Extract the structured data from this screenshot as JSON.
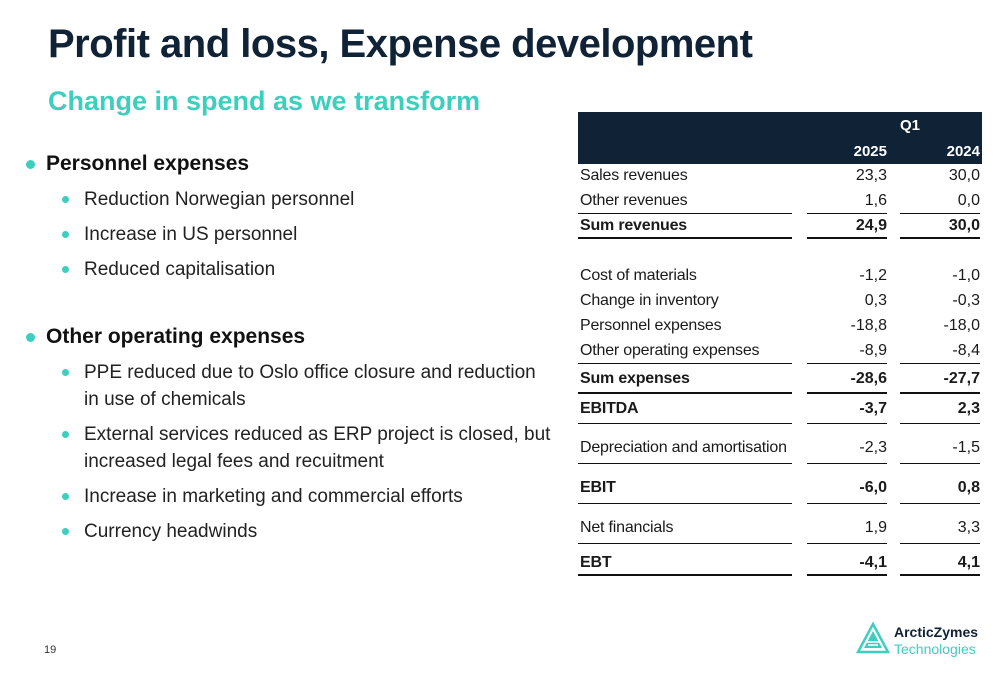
{
  "title": "Profit and loss, Expense development",
  "subtitle": "Change in spend as we transform",
  "bullets": [
    {
      "label": "Personnel expenses",
      "items": [
        "Reduction Norwegian personnel",
        "Increase in US personnel",
        "Reduced capitalisation"
      ]
    },
    {
      "label": "Other operating expenses",
      "items": [
        "PPE reduced due to Oslo office closure and reduction in use of chemicals",
        "External services reduced as ERP project is closed, but increased legal fees and recuitment",
        "Increase in marketing and commercial efforts",
        "Currency headwinds"
      ]
    }
  ],
  "table": {
    "period": "Q1",
    "col1": "2025",
    "col2": "2024",
    "rows": [
      {
        "label": "Sales revenues",
        "v1": "23,3",
        "v2": "30,0"
      },
      {
        "label": "Other revenues",
        "v1": "1,6",
        "v2": "0,0"
      },
      {
        "label": "Sum revenues",
        "v1": "24,9",
        "v2": "30,0"
      },
      {
        "label": "Cost of materials",
        "v1": "-1,2",
        "v2": "-1,0"
      },
      {
        "label": "Change in inventory",
        "v1": "0,3",
        "v2": "-0,3"
      },
      {
        "label": "Personnel expenses",
        "v1": "-18,8",
        "v2": "-18,0"
      },
      {
        "label": "Other operating expenses",
        "v1": "-8,9",
        "v2": "-8,4"
      },
      {
        "label": "Sum expenses",
        "v1": "-28,6",
        "v2": "-27,7"
      },
      {
        "label": "EBITDA",
        "v1": "-3,7",
        "v2": "2,3"
      },
      {
        "label": "Depreciation and amortisation",
        "v1": "-2,3",
        "v2": "-1,5"
      },
      {
        "label": "EBIT",
        "v1": "-6,0",
        "v2": "0,8"
      },
      {
        "label": "Net financials",
        "v1": "1,9",
        "v2": "3,3"
      },
      {
        "label": "EBT",
        "v1": "-4,1",
        "v2": "4,1"
      }
    ]
  },
  "page_number": "19",
  "logo": {
    "line1": "ArcticZymes",
    "line2": "Technologies"
  },
  "colors": {
    "navy": "#0f2236",
    "accent": "#3dcfbe"
  }
}
